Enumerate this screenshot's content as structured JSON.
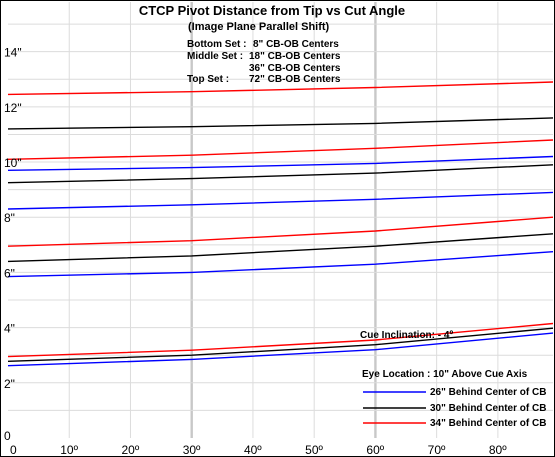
{
  "chart_data": {
    "type": "line",
    "title": "CTCP Pivot Distance from Tip vs Cut Angle",
    "subtitle": "(Image Plane Parallel Shift)",
    "set_info": [
      {
        "label": "Bottom Set :",
        "value": "8\" CB-OB Centers"
      },
      {
        "label": "Middle Set :",
        "value": "18\" CB-OB Centers"
      },
      {
        "label": "",
        "value": "36\" CB-OB Centers"
      },
      {
        "label": "Top Set :",
        "value": "72\" CB-OB Centers"
      }
    ],
    "cue_inclination": "Cue Inclination: - 4º",
    "eye_location": "Eye Location : 10\" Above Cue Axis",
    "x_ticks": [
      "0",
      "10º",
      "20º",
      "30º",
      "40º",
      "50º",
      "60º",
      "70º",
      "80º"
    ],
    "y_ticks": [
      "0",
      "2\"",
      "4\"",
      "6\"",
      "8\"",
      "10\"",
      "12\"",
      "14\""
    ],
    "xlim": [
      0,
      89
    ],
    "ylim": [
      0,
      15.8
    ],
    "colors": {
      "blue": "#0000ff",
      "black": "#000000",
      "red": "#ff0000"
    },
    "legend": [
      {
        "name": "26\" Behind Center of CB",
        "color": "#0000ff"
      },
      {
        "name": "30\" Behind Center of CB",
        "color": "#000000"
      },
      {
        "name": "34\" Behind Center of CB",
        "color": "#ff0000"
      }
    ],
    "series": [
      {
        "name": "26\" Behind Center of CB",
        "set": "Top",
        "color": "#0000ff",
        "values": [
          [
            0,
            9.7
          ],
          [
            30,
            9.8
          ],
          [
            60,
            9.95
          ],
          [
            89,
            10.2
          ]
        ]
      },
      {
        "name": "30\" Behind Center of CB",
        "set": "Top",
        "color": "#000000",
        "values": [
          [
            0,
            11.2
          ],
          [
            30,
            11.28
          ],
          [
            60,
            11.4
          ],
          [
            89,
            11.6
          ]
        ]
      },
      {
        "name": "34\" Behind Center of CB",
        "set": "Top",
        "color": "#ff0000",
        "values": [
          [
            0,
            12.45
          ],
          [
            30,
            12.55
          ],
          [
            60,
            12.7
          ],
          [
            89,
            12.9
          ]
        ]
      },
      {
        "name": "26\" Behind Center of CB",
        "set": "Middle 36",
        "color": "#0000ff",
        "values": [
          [
            0,
            8.3
          ],
          [
            30,
            8.45
          ],
          [
            60,
            8.65
          ],
          [
            89,
            8.9
          ]
        ]
      },
      {
        "name": "30\" Behind Center of CB",
        "set": "Middle 36",
        "color": "#000000",
        "values": [
          [
            0,
            9.25
          ],
          [
            30,
            9.4
          ],
          [
            60,
            9.6
          ],
          [
            89,
            9.9
          ]
        ]
      },
      {
        "name": "34\" Behind Center of CB",
        "set": "Middle 36",
        "color": "#ff0000",
        "values": [
          [
            0,
            10.1
          ],
          [
            30,
            10.25
          ],
          [
            60,
            10.5
          ],
          [
            89,
            10.8
          ]
        ]
      },
      {
        "name": "26\" Behind Center of CB",
        "set": "Middle 18",
        "color": "#0000ff",
        "values": [
          [
            0,
            5.85
          ],
          [
            30,
            6.0
          ],
          [
            60,
            6.3
          ],
          [
            89,
            6.75
          ]
        ]
      },
      {
        "name": "30\" Behind Center of CB",
        "set": "Middle 18",
        "color": "#000000",
        "values": [
          [
            0,
            6.4
          ],
          [
            30,
            6.6
          ],
          [
            60,
            6.95
          ],
          [
            89,
            7.4
          ]
        ]
      },
      {
        "name": "34\" Behind Center of CB",
        "set": "Middle 18",
        "color": "#ff0000",
        "values": [
          [
            0,
            6.95
          ],
          [
            30,
            7.15
          ],
          [
            60,
            7.5
          ],
          [
            89,
            8.0
          ]
        ]
      },
      {
        "name": "26\" Behind Center of CB",
        "set": "Bottom",
        "color": "#0000ff",
        "values": [
          [
            0,
            2.62
          ],
          [
            30,
            2.85
          ],
          [
            60,
            3.2
          ],
          [
            89,
            3.8
          ]
        ]
      },
      {
        "name": "30\" Behind Center of CB",
        "set": "Bottom",
        "color": "#000000",
        "values": [
          [
            0,
            2.78
          ],
          [
            30,
            3.0
          ],
          [
            60,
            3.38
          ],
          [
            89,
            3.98
          ]
        ]
      },
      {
        "name": "34\" Behind Center of CB",
        "set": "Bottom",
        "color": "#ff0000",
        "values": [
          [
            0,
            2.95
          ],
          [
            30,
            3.18
          ],
          [
            60,
            3.55
          ],
          [
            89,
            4.15
          ]
        ]
      }
    ]
  }
}
